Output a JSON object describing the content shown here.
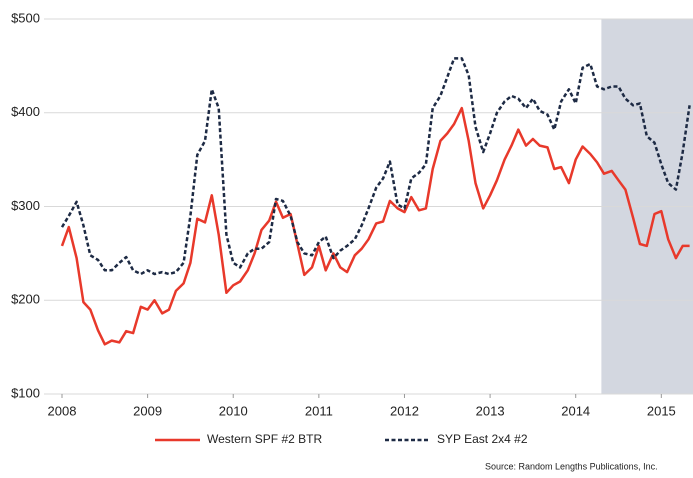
{
  "chart_data": {
    "type": "line",
    "x": [
      2008,
      2008.08,
      2008.17,
      2008.25,
      2008.33,
      2008.42,
      2008.5,
      2008.58,
      2008.67,
      2008.75,
      2008.83,
      2008.92,
      2009,
      2009.08,
      2009.17,
      2009.25,
      2009.33,
      2009.42,
      2009.5,
      2009.58,
      2009.67,
      2009.75,
      2009.83,
      2009.92,
      2010,
      2010.08,
      2010.17,
      2010.25,
      2010.33,
      2010.42,
      2010.5,
      2010.58,
      2010.67,
      2010.75,
      2010.83,
      2010.92,
      2011,
      2011.08,
      2011.17,
      2011.25,
      2011.33,
      2011.42,
      2011.5,
      2011.58,
      2011.67,
      2011.75,
      2011.83,
      2011.92,
      2012,
      2012.08,
      2012.17,
      2012.25,
      2012.33,
      2012.42,
      2012.5,
      2012.58,
      2012.67,
      2012.75,
      2012.83,
      2012.92,
      2013,
      2013.08,
      2013.17,
      2013.25,
      2013.33,
      2013.42,
      2013.5,
      2013.58,
      2013.67,
      2013.75,
      2013.83,
      2013.92,
      2014,
      2014.08,
      2014.17,
      2014.25,
      2014.33,
      2014.42,
      2014.5,
      2014.58,
      2014.67,
      2014.75,
      2014.83,
      2014.92,
      2015,
      2015.08,
      2015.17,
      2015.25,
      2015.33
    ],
    "series": [
      {
        "name": "Western SPF #2 BTR",
        "color": "#e8392b",
        "dash": false,
        "values": [
          258,
          278,
          245,
          198,
          190,
          168,
          153,
          157,
          155,
          167,
          165,
          193,
          190,
          200,
          186,
          190,
          210,
          218,
          240,
          287,
          283,
          312,
          270,
          208,
          216,
          220,
          232,
          250,
          275,
          285,
          305,
          288,
          292,
          260,
          227,
          235,
          258,
          232,
          250,
          235,
          230,
          248,
          255,
          265,
          282,
          284,
          306,
          298,
          294,
          310,
          296,
          298,
          340,
          370,
          378,
          388,
          405,
          370,
          325,
          298,
          312,
          328,
          350,
          365,
          382,
          365,
          372,
          365,
          363,
          340,
          342,
          325,
          350,
          364,
          356,
          347,
          335,
          338,
          328,
          318,
          288,
          260,
          258,
          292,
          295,
          265,
          245,
          258,
          258
        ]
      },
      {
        "name": "SYP East 2x4 #2",
        "color": "#1d2a44",
        "dash": true,
        "values": [
          278,
          290,
          305,
          280,
          248,
          243,
          232,
          232,
          240,
          246,
          232,
          228,
          232,
          228,
          230,
          228,
          230,
          240,
          290,
          355,
          370,
          425,
          405,
          270,
          240,
          235,
          250,
          255,
          255,
          262,
          308,
          306,
          290,
          262,
          250,
          248,
          262,
          268,
          245,
          253,
          258,
          265,
          280,
          298,
          320,
          330,
          348,
          302,
          298,
          330,
          336,
          345,
          405,
          418,
          438,
          458,
          458,
          440,
          385,
          358,
          378,
          400,
          412,
          418,
          415,
          405,
          415,
          402,
          398,
          382,
          412,
          425,
          410,
          448,
          452,
          428,
          425,
          428,
          428,
          415,
          408,
          410,
          375,
          368,
          345,
          325,
          318,
          358,
          408
        ]
      }
    ],
    "xlim": [
      2008,
      2015.37
    ],
    "xticks": [
      2008,
      2009,
      2010,
      2011,
      2012,
      2013,
      2014,
      2015
    ],
    "ylim": [
      100,
      500
    ],
    "yticks": [
      {
        "value": 100,
        "label": "$100"
      },
      {
        "value": 200,
        "label": "$200"
      },
      {
        "value": 300,
        "label": "$300"
      },
      {
        "value": 400,
        "label": "$400"
      },
      {
        "value": 500,
        "label": "$500"
      }
    ],
    "grid": true,
    "highlight_x": [
      2014.3,
      2015.37
    ],
    "highlight_color": "#d3d7e0",
    "legend": "bottom",
    "source": "Source: Random Lengths Publications, Inc."
  }
}
